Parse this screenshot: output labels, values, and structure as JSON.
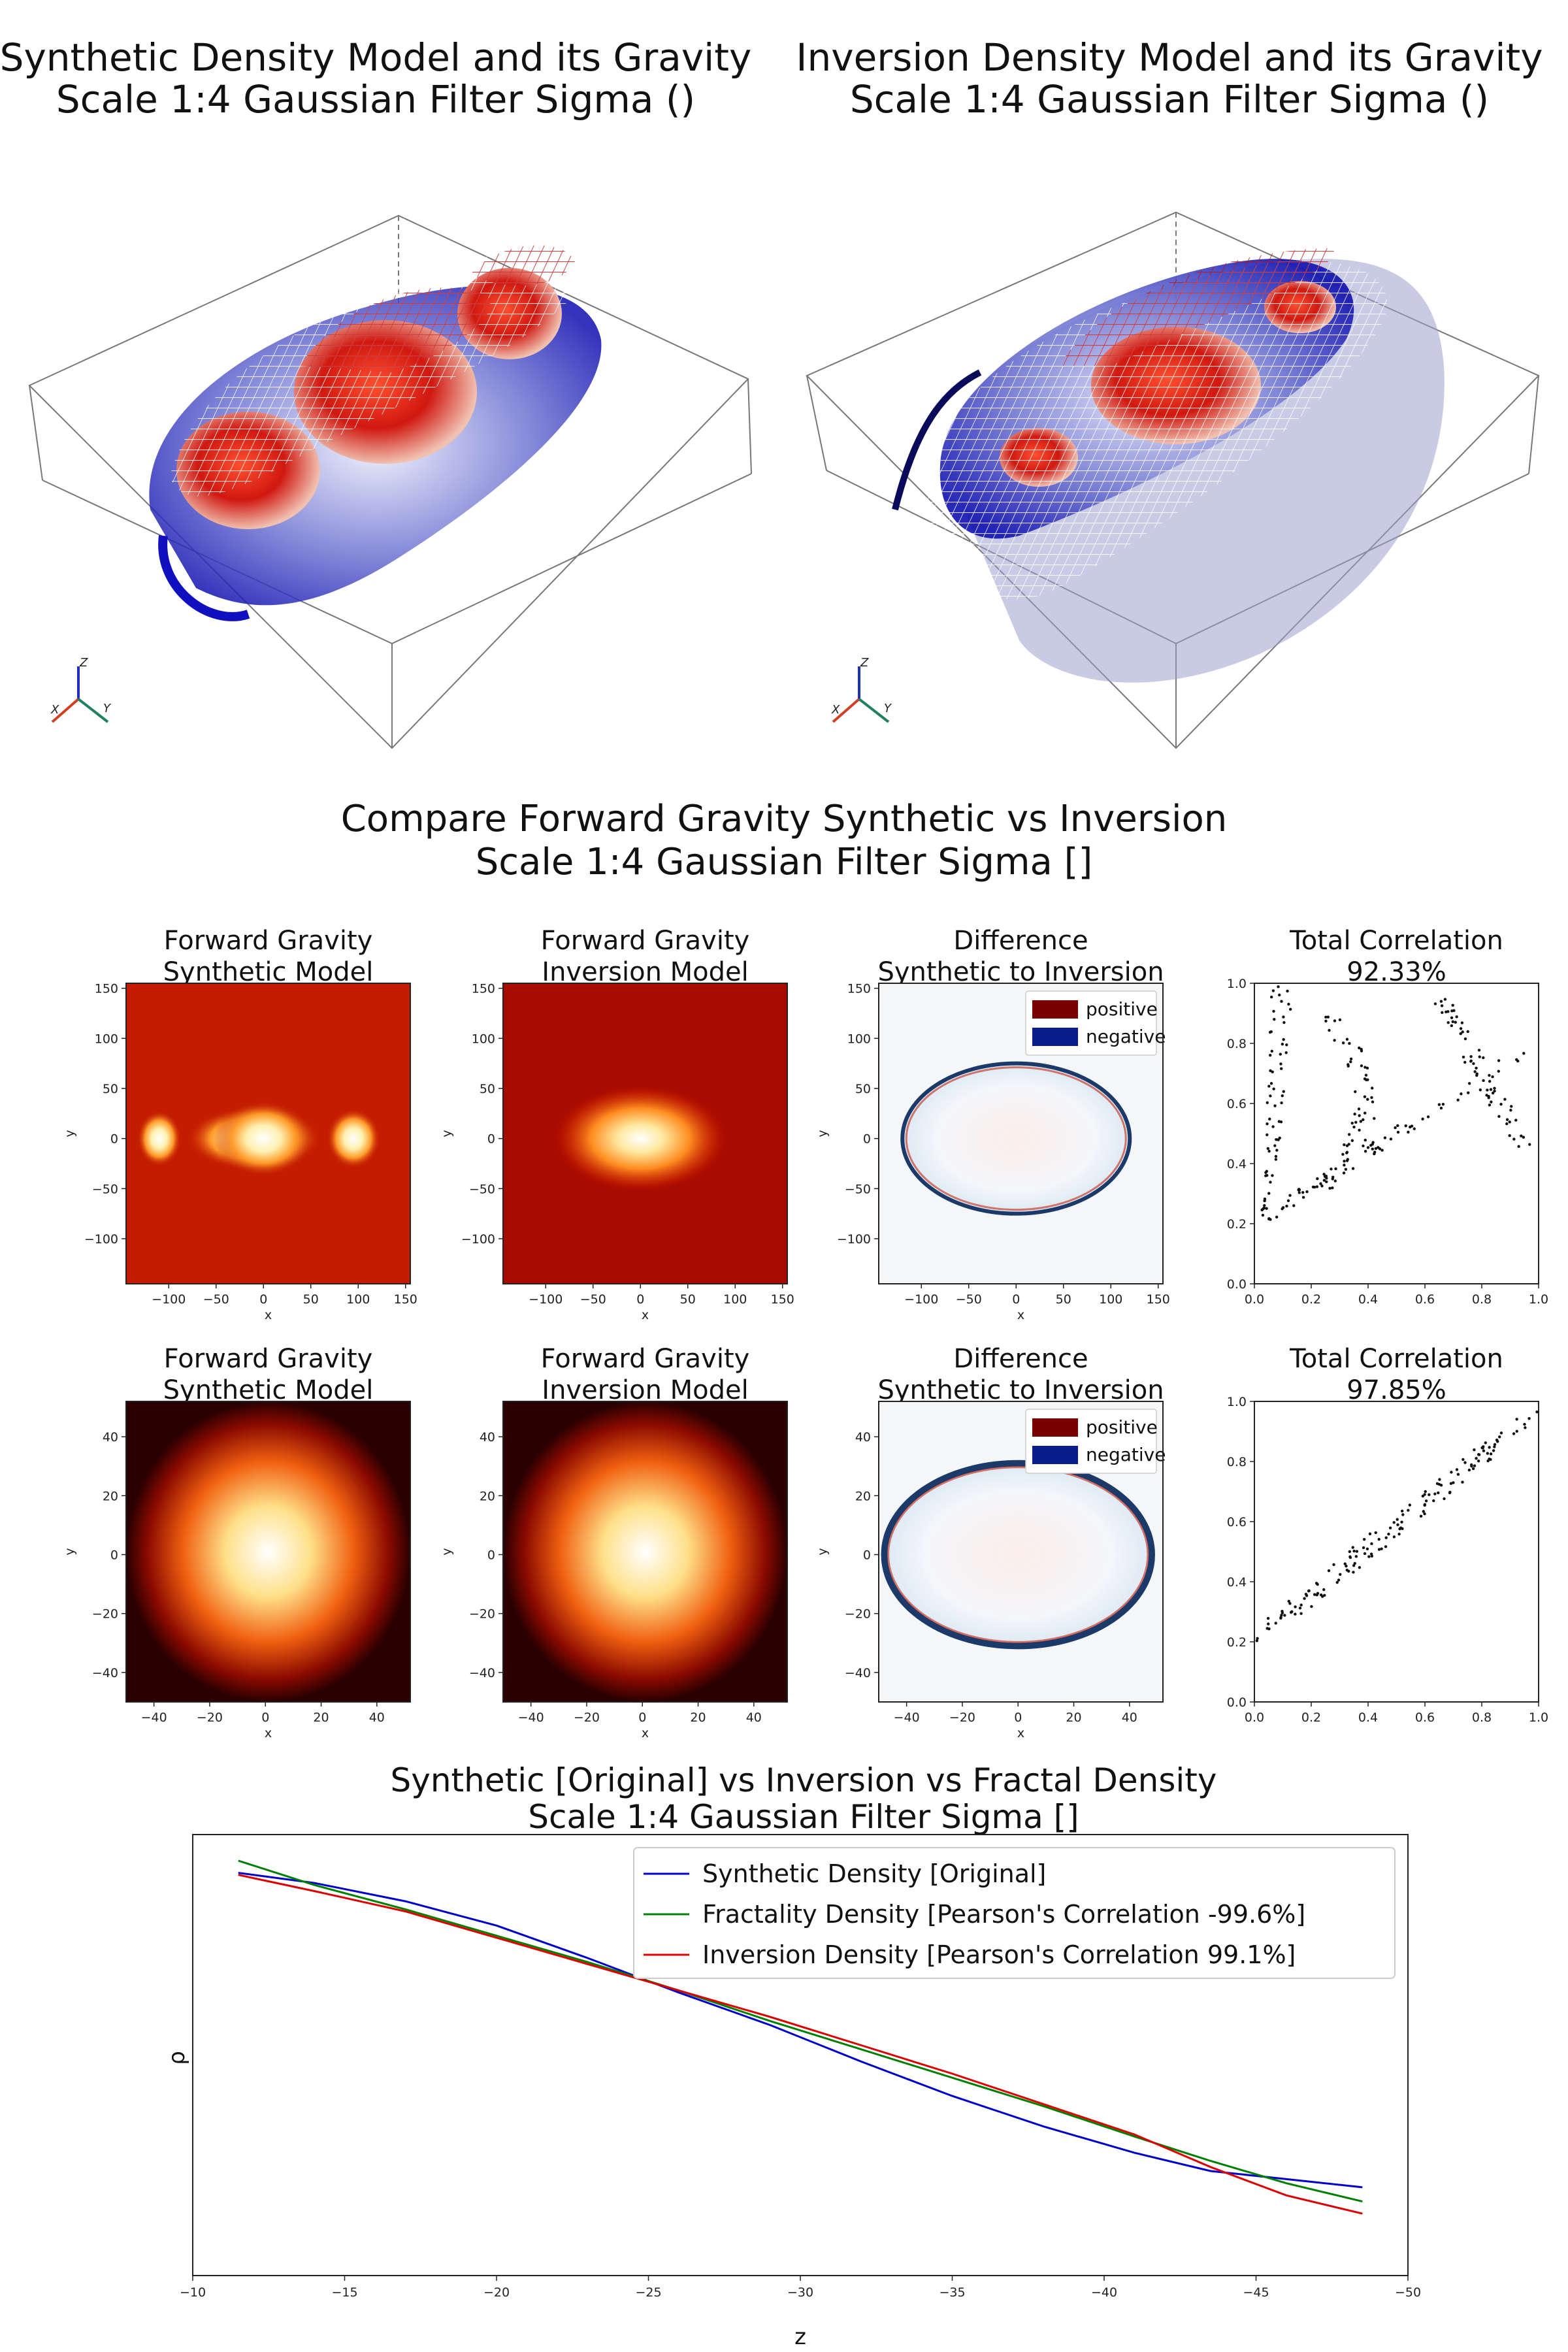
{
  "views3d": [
    {
      "title_line1": "Synthetic Density Model and its Gravity",
      "title_line2": "Scale 1:4 Gaussian Filter Sigma ()",
      "axis_labels": [
        "X",
        "Y",
        "Z"
      ]
    },
    {
      "title_line1": "Inversion Density Model and its Gravity",
      "title_line2": "Scale 1:4 Gaussian Filter Sigma ()",
      "axis_labels": [
        "X",
        "Y",
        "Z"
      ]
    }
  ],
  "compare": {
    "title_line1": "Compare Forward Gravity Synthetic vs Inversion",
    "title_line2": "Scale 1:4 Gaussian Filter Sigma []"
  },
  "rows": [
    {
      "panels": [
        {
          "title1": "Forward Gravity",
          "title2": "Synthetic Model"
        },
        {
          "title1": "Forward Gravity",
          "title2": "Inversion Model"
        },
        {
          "title1": "Difference",
          "title2": "Synthetic to Inversion"
        },
        {
          "title1": "Total Correlation",
          "title2": "92.33%"
        }
      ],
      "xticks": [
        "−100",
        "−50",
        "0",
        "50",
        "100",
        "150"
      ],
      "yticks": [
        "150",
        "100",
        "50",
        "0",
        "−50",
        "−100"
      ],
      "xlabel": "x",
      "ylabel": "y",
      "legend": [
        "positive",
        "negative"
      ],
      "corr_ticks": [
        "0.0",
        "0.2",
        "0.4",
        "0.6",
        "0.8",
        "1.0"
      ]
    },
    {
      "panels": [
        {
          "title1": "Forward Gravity",
          "title2": "Synthetic Model"
        },
        {
          "title1": "Forward Gravity",
          "title2": "Inversion Model"
        },
        {
          "title1": "Difference",
          "title2": "Synthetic to Inversion"
        },
        {
          "title1": "Total Correlation",
          "title2": "97.85%"
        }
      ],
      "xticks": [
        "−40",
        "−20",
        "0",
        "20",
        "40"
      ],
      "yticks": [
        "40",
        "20",
        "0",
        "−20",
        "−40"
      ],
      "xlabel": "x",
      "ylabel": "y",
      "legend": [
        "positive",
        "negative"
      ],
      "corr_ticks": [
        "0.0",
        "0.2",
        "0.4",
        "0.6",
        "0.8",
        "1.0"
      ]
    }
  ],
  "chart_data": {
    "type": "line",
    "title_line1": "Synthetic [Original] vs Inversion vs Fractal Density",
    "title_line2": "Scale 1:4 Gaussian Filter Sigma []",
    "xlabel": "z",
    "ylabel": "ρ",
    "xlim": [
      -10,
      -50
    ],
    "xticks": [
      "−10",
      "−15",
      "−20",
      "−25",
      "−30",
      "−35",
      "−40",
      "−45",
      "−50"
    ],
    "legend_position": "top-right",
    "x": [
      -11.5,
      -14,
      -17,
      -20,
      -23,
      -26,
      -29,
      -32,
      -35,
      -38,
      -41,
      -43.5,
      -46,
      -48.5
    ],
    "series": [
      {
        "name": "Synthetic Density [Original]",
        "color": "#0000cc",
        "values": [
          0.96,
          0.935,
          0.89,
          0.83,
          0.75,
          0.665,
          0.585,
          0.495,
          0.41,
          0.335,
          0.27,
          0.225,
          0.205,
          0.185
        ]
      },
      {
        "name": "Fractality Density [Pearson's Correlation -99.6%]",
        "color": "#008000",
        "values": [
          0.99,
          0.93,
          0.87,
          0.805,
          0.74,
          0.67,
          0.595,
          0.525,
          0.455,
          0.385,
          0.31,
          0.25,
          0.195,
          0.15
        ]
      },
      {
        "name": "Inversion Density [Pearson's Correlation 99.1%]",
        "color": "#dd0000",
        "values": [
          0.955,
          0.915,
          0.865,
          0.8,
          0.735,
          0.67,
          0.605,
          0.535,
          0.465,
          0.39,
          0.315,
          0.235,
          0.165,
          0.12
        ]
      }
    ]
  }
}
